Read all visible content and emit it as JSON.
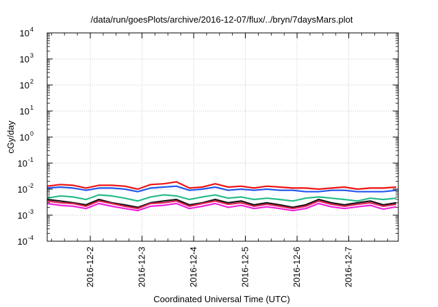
{
  "chart_data": {
    "type": "line",
    "title": "/data/run/goesPlots/archive/2016-12-07/flux/../bryn/7daysMars.plot",
    "xlabel": "Coordinated Universal Time (UTC)",
    "ylabel": "cGy/day",
    "yscale": "log",
    "ylim_exp": [
      -4,
      4
    ],
    "y_tick_labels": [
      {
        "base": "10",
        "exp": "-4"
      },
      {
        "base": "10",
        "exp": "-3"
      },
      {
        "base": "10",
        "exp": "-2"
      },
      {
        "base": "10",
        "exp": "-1"
      },
      {
        "base": "10",
        "exp": "0"
      },
      {
        "base": "10",
        "exp": "1"
      },
      {
        "base": "10",
        "exp": "2"
      },
      {
        "base": "10",
        "exp": "3"
      },
      {
        "base": "10",
        "exp": "4"
      }
    ],
    "xlim": [
      "2016-12-01T04:00",
      "2016-12-07T23:00"
    ],
    "x_ticks": [
      "2016-12-2",
      "2016-12-3",
      "2016-12-4",
      "2016-12-5",
      "2016-12-6",
      "2016-12-7"
    ],
    "grid": true,
    "legend": "none",
    "x": [
      "2016-12-01T04:00",
      "2016-12-01T10:00",
      "2016-12-01T16:00",
      "2016-12-01T22:00",
      "2016-12-02T04:00",
      "2016-12-02T10:00",
      "2016-12-02T16:00",
      "2016-12-02T22:00",
      "2016-12-03T04:00",
      "2016-12-03T10:00",
      "2016-12-03T16:00",
      "2016-12-03T22:00",
      "2016-12-04T04:00",
      "2016-12-04T10:00",
      "2016-12-04T16:00",
      "2016-12-04T22:00",
      "2016-12-05T04:00",
      "2016-12-05T10:00",
      "2016-12-05T16:00",
      "2016-12-05T22:00",
      "2016-12-06T04:00",
      "2016-12-06T10:00",
      "2016-12-06T16:00",
      "2016-12-06T22:00",
      "2016-12-07T04:00",
      "2016-12-07T10:00",
      "2016-12-07T16:00",
      "2016-12-07T22:00"
    ],
    "series": [
      {
        "color": "#ee1111",
        "values": [
          0.013,
          0.015,
          0.014,
          0.011,
          0.014,
          0.014,
          0.013,
          0.01,
          0.015,
          0.016,
          0.019,
          0.011,
          0.012,
          0.016,
          0.012,
          0.013,
          0.011,
          0.013,
          0.012,
          0.011,
          0.011,
          0.01,
          0.011,
          0.012,
          0.01,
          0.011,
          0.011,
          0.012
        ]
      },
      {
        "color": "#2255ee",
        "values": [
          0.011,
          0.012,
          0.011,
          0.009,
          0.011,
          0.011,
          0.01,
          0.008,
          0.011,
          0.012,
          0.013,
          0.009,
          0.01,
          0.012,
          0.009,
          0.01,
          0.009,
          0.01,
          0.009,
          0.009,
          0.008,
          0.008,
          0.009,
          0.009,
          0.008,
          0.008,
          0.008,
          0.009
        ]
      },
      {
        "color": "#22bb88",
        "values": [
          0.0045,
          0.0055,
          0.005,
          0.004,
          0.006,
          0.0055,
          0.0045,
          0.0035,
          0.005,
          0.006,
          0.0055,
          0.004,
          0.005,
          0.006,
          0.0045,
          0.005,
          0.004,
          0.0045,
          0.004,
          0.0035,
          0.0045,
          0.005,
          0.0045,
          0.004,
          0.0035,
          0.0045,
          0.004,
          0.0045
        ]
      },
      {
        "color": "#111111",
        "values": [
          0.004,
          0.0035,
          0.003,
          0.0025,
          0.004,
          0.003,
          0.0025,
          0.002,
          0.003,
          0.0035,
          0.004,
          0.0025,
          0.003,
          0.004,
          0.003,
          0.0035,
          0.0025,
          0.003,
          0.0025,
          0.002,
          0.0025,
          0.004,
          0.003,
          0.0025,
          0.003,
          0.0035,
          0.0025,
          0.003
        ]
      },
      {
        "color": "#dd2255",
        "values": [
          0.0035,
          0.003,
          0.0028,
          0.0022,
          0.0035,
          0.0028,
          0.0022,
          0.0018,
          0.0028,
          0.003,
          0.0035,
          0.0022,
          0.0028,
          0.0035,
          0.0026,
          0.003,
          0.0022,
          0.0026,
          0.0022,
          0.0018,
          0.0022,
          0.0035,
          0.0026,
          0.0022,
          0.0026,
          0.003,
          0.0022,
          0.0026
        ]
      },
      {
        "color": "#ee22dd",
        "values": [
          0.0028,
          0.0024,
          0.0022,
          0.0018,
          0.0028,
          0.0022,
          0.0018,
          0.0015,
          0.0022,
          0.0024,
          0.0028,
          0.0018,
          0.0022,
          0.0028,
          0.002,
          0.0024,
          0.0018,
          0.0021,
          0.0018,
          0.0015,
          0.0018,
          0.0028,
          0.0021,
          0.0018,
          0.0021,
          0.0024,
          0.0017,
          0.0021
        ]
      }
    ]
  }
}
